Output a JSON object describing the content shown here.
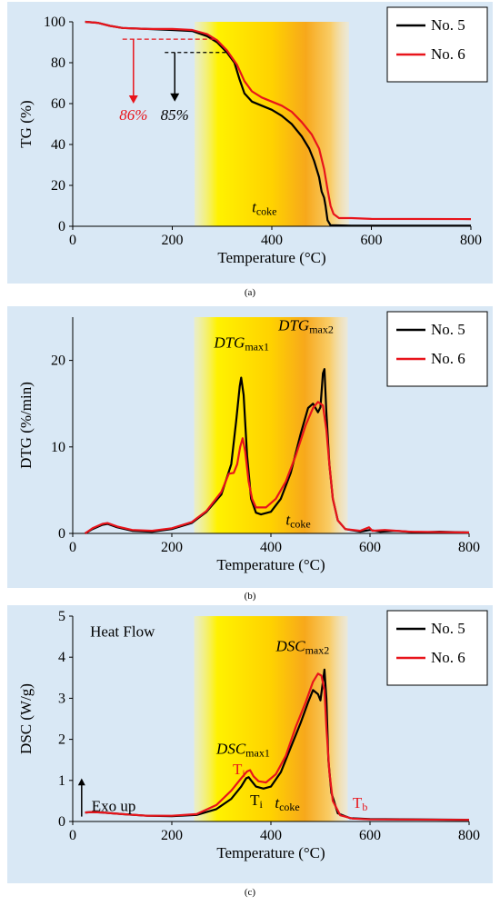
{
  "legend": {
    "items": [
      {
        "name": "No. 5",
        "color": "#000000"
      },
      {
        "name": "No. 6",
        "color": "#e8141b"
      }
    ]
  },
  "captions": {
    "a": "(a)",
    "b": "(b)",
    "c": "(c)"
  },
  "annotations": {
    "a": {
      "tcoke": "t",
      "tcoke_sub": "coke",
      "red_pct": "86%",
      "black_pct": "85%"
    },
    "b": {
      "dtg1": "DTG",
      "dtg1_sub": "max1",
      "dtg2": "DTG",
      "dtg2_sub": "max2",
      "tcoke": "t",
      "tcoke_sub": "coke"
    },
    "c": {
      "heat_flow": "Heat Flow",
      "exo": "Exo up",
      "dsc1": "DSC",
      "dsc1_sub": "max1",
      "dsc2": "DSC",
      "dsc2_sub": "max2",
      "ti_red": "T",
      "ti_red_sub": "i",
      "ti_black": "T",
      "ti_black_sub": "i",
      "tcoke": "t",
      "tcoke_sub": "coke",
      "tb": "T",
      "tb_sub": "b"
    }
  },
  "chart_data": [
    {
      "type": "line",
      "panel": "a",
      "xlabel": "Temperature  (°C)",
      "ylabel": "TG (%)",
      "xlim": [
        0,
        800
      ],
      "ylim": [
        0,
        100
      ],
      "xticks": [
        0,
        200,
        400,
        600,
        800
      ],
      "yticks": [
        0,
        20,
        40,
        60,
        80,
        100
      ],
      "highlight_band": [
        245,
        555
      ],
      "series": [
        {
          "name": "No. 5",
          "color": "#000000",
          "points": [
            [
              25,
              100
            ],
            [
              50,
              99.5
            ],
            [
              75,
              98
            ],
            [
              100,
              97
            ],
            [
              150,
              96.5
            ],
            [
              200,
              96
            ],
            [
              240,
              95.5
            ],
            [
              270,
              93
            ],
            [
              290,
              90
            ],
            [
              310,
              85
            ],
            [
              325,
              80
            ],
            [
              335,
              72
            ],
            [
              345,
              65
            ],
            [
              360,
              61
            ],
            [
              380,
              59
            ],
            [
              400,
              57
            ],
            [
              420,
              54
            ],
            [
              440,
              50
            ],
            [
              460,
              44
            ],
            [
              475,
              38
            ],
            [
              485,
              32
            ],
            [
              495,
              24
            ],
            [
              500,
              17
            ],
            [
              505,
              14
            ],
            [
              508,
              10
            ],
            [
              512,
              3
            ],
            [
              518,
              0.5
            ],
            [
              560,
              0.3
            ],
            [
              800,
              0.3
            ]
          ]
        },
        {
          "name": "No. 6",
          "color": "#e8141b",
          "points": [
            [
              25,
              100
            ],
            [
              50,
              99.5
            ],
            [
              75,
              98
            ],
            [
              100,
              97
            ],
            [
              150,
              96.5
            ],
            [
              200,
              96.5
            ],
            [
              240,
              96
            ],
            [
              270,
              94
            ],
            [
              290,
              91
            ],
            [
              310,
              86
            ],
            [
              330,
              79
            ],
            [
              345,
              71
            ],
            [
              360,
              66
            ],
            [
              380,
              63
            ],
            [
              400,
              61
            ],
            [
              420,
              59
            ],
            [
              440,
              56
            ],
            [
              460,
              51
            ],
            [
              480,
              45
            ],
            [
              495,
              38
            ],
            [
              505,
              28
            ],
            [
              512,
              18
            ],
            [
              518,
              10
            ],
            [
              524,
              6
            ],
            [
              535,
              4
            ],
            [
              560,
              4
            ],
            [
              600,
              3.6
            ],
            [
              800,
              3.5
            ]
          ]
        }
      ]
    },
    {
      "type": "line",
      "panel": "b",
      "xlabel": "Temperature  (°C)",
      "ylabel": "DTG (%/min)",
      "xlim": [
        0,
        800
      ],
      "ylim": [
        0,
        25
      ],
      "xticks": [
        0,
        200,
        400,
        600,
        800
      ],
      "yticks": [
        0,
        10,
        20
      ],
      "highlight_band": [
        245,
        555
      ],
      "series": [
        {
          "name": "No. 5",
          "color": "#000000",
          "points": [
            [
              25,
              0
            ],
            [
              40,
              0.5
            ],
            [
              60,
              1
            ],
            [
              70,
              1.1
            ],
            [
              90,
              0.7
            ],
            [
              120,
              0.3
            ],
            [
              160,
              0.2
            ],
            [
              200,
              0.5
            ],
            [
              240,
              1.2
            ],
            [
              270,
              2.5
            ],
            [
              300,
              4.5
            ],
            [
              320,
              8
            ],
            [
              330,
              13
            ],
            [
              337,
              17
            ],
            [
              340,
              18
            ],
            [
              345,
              16
            ],
            [
              352,
              9
            ],
            [
              360,
              4
            ],
            [
              370,
              2.4
            ],
            [
              380,
              2.2
            ],
            [
              400,
              2.5
            ],
            [
              420,
              4
            ],
            [
              440,
              7
            ],
            [
              460,
              11.5
            ],
            [
              475,
              14.5
            ],
            [
              485,
              15
            ],
            [
              495,
              14
            ],
            [
              500,
              14.6
            ],
            [
              505,
              18.5
            ],
            [
              508,
              19
            ],
            [
              512,
              14
            ],
            [
              518,
              8
            ],
            [
              525,
              4
            ],
            [
              535,
              1.5
            ],
            [
              550,
              0.5
            ],
            [
              580,
              0.2
            ],
            [
              600,
              0.4
            ],
            [
              620,
              0.2
            ],
            [
              650,
              0.3
            ],
            [
              700,
              0.1
            ],
            [
              740,
              0.2
            ],
            [
              800,
              0.1
            ]
          ]
        },
        {
          "name": "No. 6",
          "color": "#e8141b",
          "points": [
            [
              25,
              0
            ],
            [
              40,
              0.6
            ],
            [
              60,
              1.1
            ],
            [
              70,
              1.2
            ],
            [
              90,
              0.8
            ],
            [
              120,
              0.4
            ],
            [
              160,
              0.3
            ],
            [
              200,
              0.6
            ],
            [
              240,
              1.3
            ],
            [
              270,
              2.6
            ],
            [
              300,
              4.8
            ],
            [
              315,
              6.9
            ],
            [
              325,
              7
            ],
            [
              332,
              8
            ],
            [
              338,
              10
            ],
            [
              343,
              11
            ],
            [
              348,
              9.5
            ],
            [
              355,
              6
            ],
            [
              362,
              4
            ],
            [
              370,
              3
            ],
            [
              390,
              3
            ],
            [
              410,
              4
            ],
            [
              430,
              6
            ],
            [
              450,
              9
            ],
            [
              470,
              12.5
            ],
            [
              485,
              14.5
            ],
            [
              495,
              15.2
            ],
            [
              505,
              14.8
            ],
            [
              512,
              12
            ],
            [
              518,
              8
            ],
            [
              525,
              4
            ],
            [
              535,
              1.5
            ],
            [
              550,
              0.5
            ],
            [
              580,
              0.3
            ],
            [
              598,
              0.7
            ],
            [
              605,
              0.3
            ],
            [
              630,
              0.4
            ],
            [
              680,
              0.2
            ],
            [
              800,
              0.1
            ]
          ]
        }
      ]
    },
    {
      "type": "line",
      "panel": "c",
      "xlabel": "Temperature  (°C)",
      "ylabel": "DSC (W/g)",
      "xlim": [
        0,
        800
      ],
      "ylim": [
        0,
        5
      ],
      "xticks": [
        0,
        200,
        400,
        600,
        800
      ],
      "yticks": [
        0,
        1,
        2,
        3,
        4,
        5
      ],
      "highlight_band": [
        245,
        555
      ],
      "series": [
        {
          "name": "No. 5",
          "color": "#000000",
          "points": [
            [
              25,
              0.22
            ],
            [
              40,
              0.23
            ],
            [
              60,
              0.22
            ],
            [
              100,
              0.18
            ],
            [
              150,
              0.14
            ],
            [
              200,
              0.13
            ],
            [
              250,
              0.16
            ],
            [
              290,
              0.3
            ],
            [
              320,
              0.55
            ],
            [
              340,
              0.85
            ],
            [
              350,
              1.05
            ],
            [
              355,
              1.08
            ],
            [
              360,
              1.0
            ],
            [
              370,
              0.85
            ],
            [
              385,
              0.8
            ],
            [
              400,
              0.85
            ],
            [
              420,
              1.2
            ],
            [
              440,
              1.8
            ],
            [
              460,
              2.4
            ],
            [
              475,
              2.9
            ],
            [
              485,
              3.2
            ],
            [
              495,
              3.1
            ],
            [
              500,
              2.95
            ],
            [
              505,
              3.4
            ],
            [
              508,
              3.7
            ],
            [
              512,
              3.0
            ],
            [
              516,
              1.5
            ],
            [
              522,
              0.7
            ],
            [
              535,
              0.2
            ],
            [
              560,
              0.08
            ],
            [
              600,
              0.06
            ],
            [
              800,
              0.04
            ]
          ]
        },
        {
          "name": "No. 6",
          "color": "#e8141b",
          "points": [
            [
              25,
              0.22
            ],
            [
              40,
              0.23
            ],
            [
              60,
              0.22
            ],
            [
              100,
              0.18
            ],
            [
              150,
              0.14
            ],
            [
              200,
              0.14
            ],
            [
              250,
              0.18
            ],
            [
              290,
              0.4
            ],
            [
              320,
              0.75
            ],
            [
              340,
              1.05
            ],
            [
              352,
              1.22
            ],
            [
              358,
              1.25
            ],
            [
              365,
              1.1
            ],
            [
              375,
              0.98
            ],
            [
              390,
              0.95
            ],
            [
              410,
              1.15
            ],
            [
              430,
              1.6
            ],
            [
              450,
              2.3
            ],
            [
              470,
              2.9
            ],
            [
              485,
              3.4
            ],
            [
              495,
              3.6
            ],
            [
              502,
              3.55
            ],
            [
              508,
              3.2
            ],
            [
              512,
              2.3
            ],
            [
              518,
              1.2
            ],
            [
              525,
              0.5
            ],
            [
              540,
              0.15
            ],
            [
              565,
              0.07
            ],
            [
              600,
              0.05
            ],
            [
              800,
              0.04
            ]
          ]
        }
      ]
    }
  ]
}
